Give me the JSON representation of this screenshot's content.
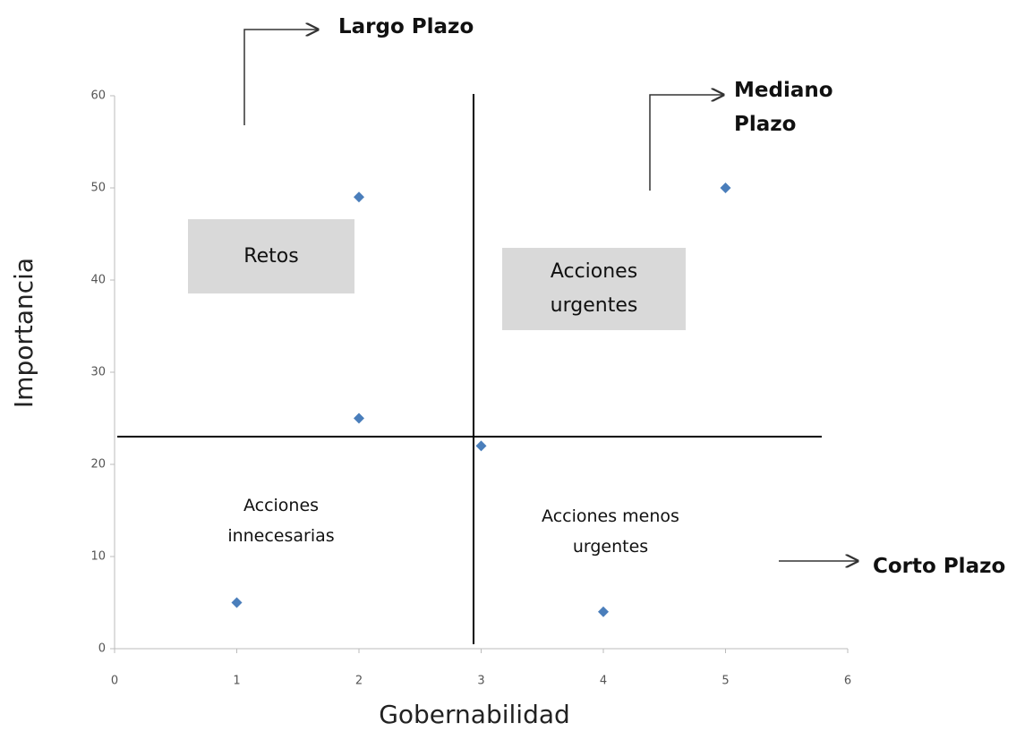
{
  "chart_data": {
    "type": "scatter",
    "x": [
      1,
      2,
      2,
      3,
      4,
      5
    ],
    "values": [
      5,
      49,
      25,
      22,
      4,
      50
    ],
    "color": "#4a7ebb",
    "xlim": [
      0,
      6
    ],
    "ylim": [
      0,
      60
    ],
    "xticks": [
      0,
      1,
      2,
      3,
      4,
      5,
      6
    ],
    "yticks": [
      0,
      10,
      20,
      30,
      40,
      50,
      60
    ],
    "xlabel": "Gobernabilidad",
    "ylabel": "Importancia",
    "annotations": [
      "Largo Plazo",
      "Mediano Plazo",
      "Corto Plazo",
      "Retos",
      "Acciones urgentes",
      "Acciones innecesarias",
      "Acciones menos urgentes"
    ]
  }
}
